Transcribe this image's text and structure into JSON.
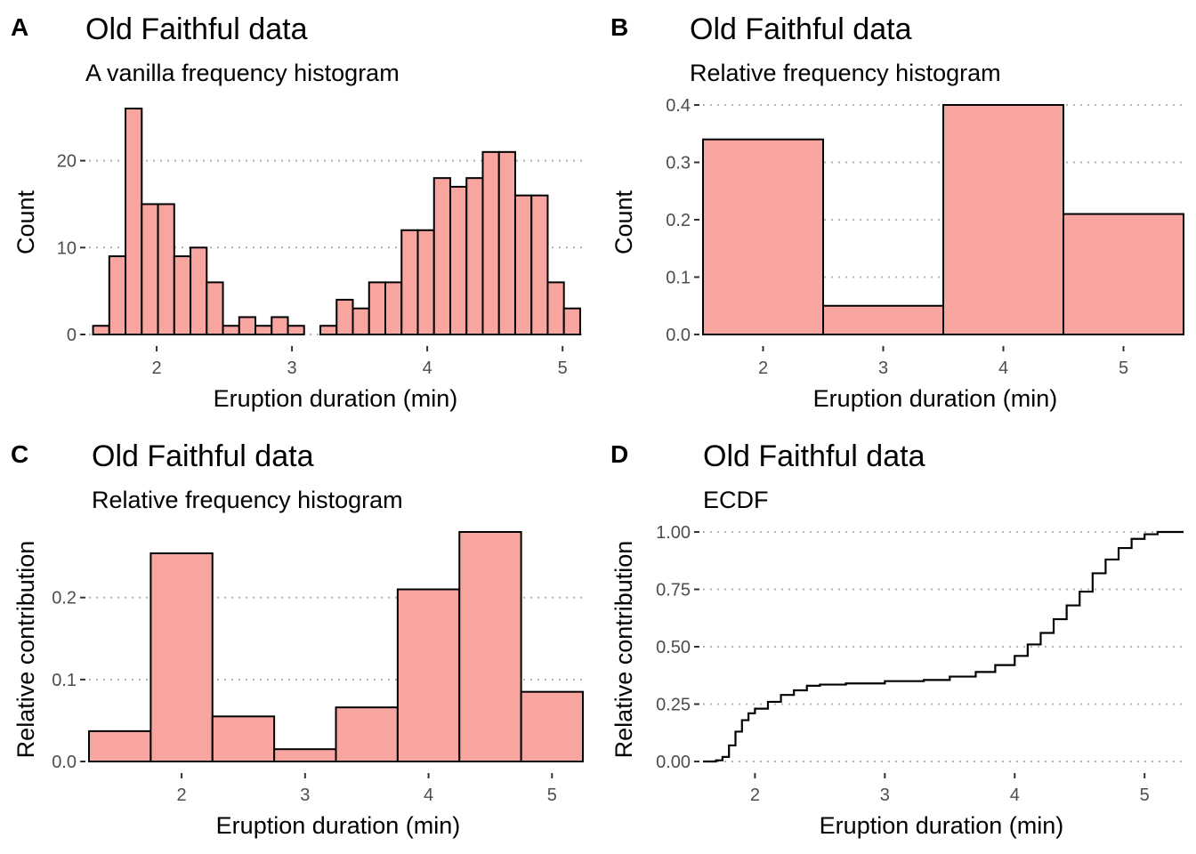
{
  "chart_data": [
    {
      "tag": "A",
      "type": "bar",
      "title": "Old Faithful data",
      "subtitle": "A vanilla frequency histogram",
      "xlabel": "Eruption duration (min)",
      "ylabel": "Count",
      "xlim": [
        1.5,
        5.15
      ],
      "ylim": [
        0,
        26
      ],
      "xticks": [
        2,
        3,
        4,
        5
      ],
      "yticks": [
        0,
        10,
        20
      ],
      "grid": "horizontal dotted",
      "bin_edges": [
        1.53,
        1.65,
        1.77,
        1.89,
        2.01,
        2.13,
        2.25,
        2.37,
        2.49,
        2.61,
        2.73,
        2.85,
        2.97,
        3.09,
        3.21,
        3.33,
        3.45,
        3.57,
        3.69,
        3.81,
        3.93,
        4.05,
        4.17,
        4.29,
        4.41,
        4.53,
        4.65,
        4.77,
        4.89,
        5.01,
        5.13
      ],
      "values": [
        1,
        9,
        26,
        15,
        15,
        9,
        10,
        6,
        1,
        2,
        1,
        2,
        1,
        0,
        1,
        4,
        3,
        6,
        6,
        12,
        12,
        18,
        17,
        18,
        21,
        21,
        16,
        16,
        6,
        3
      ]
    },
    {
      "tag": "B",
      "type": "bar",
      "title": "Old Faithful data",
      "subtitle": "Relative frequency histogram",
      "xlabel": "Eruption duration (min)",
      "ylabel": "Count",
      "xlim": [
        1.5,
        5.5
      ],
      "ylim": [
        0,
        0.4
      ],
      "xticks": [
        2,
        3,
        4,
        5
      ],
      "yticks": [
        0.0,
        0.1,
        0.2,
        0.3,
        0.4
      ],
      "ytick_format": 1,
      "grid": "horizontal dotted",
      "bin_edges": [
        1.5,
        2.5,
        3.5,
        4.5,
        5.5
      ],
      "values": [
        0.34,
        0.05,
        0.4,
        0.21
      ]
    },
    {
      "tag": "C",
      "type": "bar",
      "title": "Old Faithful data",
      "subtitle": "Relative frequency histogram",
      "xlabel": "Eruption duration (min)",
      "ylabel": "Relative contribution",
      "xlim": [
        1.25,
        5.25
      ],
      "ylim": [
        0,
        0.28
      ],
      "xticks": [
        2,
        3,
        4,
        5
      ],
      "yticks": [
        0.0,
        0.1,
        0.2
      ],
      "ytick_format": 1,
      "grid": "horizontal dotted",
      "bin_edges": [
        1.25,
        1.75,
        2.25,
        2.75,
        3.25,
        3.75,
        4.25,
        4.75,
        5.25
      ],
      "values": [
        0.037,
        0.254,
        0.055,
        0.015,
        0.066,
        0.21,
        0.28,
        0.085
      ]
    },
    {
      "tag": "D",
      "type": "line",
      "title": "Old Faithful data",
      "subtitle": "ECDF",
      "xlabel": "Eruption duration (min)",
      "ylabel": "Relative contribution",
      "xlim": [
        1.6,
        5.3
      ],
      "ylim": [
        0,
        1
      ],
      "xticks": [
        2,
        3,
        4,
        5
      ],
      "yticks": [
        0.0,
        0.25,
        0.5,
        0.75,
        1.0
      ],
      "ytick_format": 2,
      "grid": "horizontal dotted",
      "x": [
        1.6,
        1.7,
        1.75,
        1.8,
        1.85,
        1.9,
        1.95,
        2.0,
        2.1,
        2.2,
        2.3,
        2.4,
        2.5,
        2.7,
        3.0,
        3.3,
        3.5,
        3.7,
        3.85,
        4.0,
        4.1,
        4.2,
        4.3,
        4.4,
        4.5,
        4.6,
        4.7,
        4.8,
        4.9,
        5.0,
        5.1,
        5.3
      ],
      "y": [
        0.0,
        0.005,
        0.02,
        0.07,
        0.13,
        0.18,
        0.21,
        0.23,
        0.26,
        0.29,
        0.31,
        0.33,
        0.335,
        0.34,
        0.35,
        0.355,
        0.37,
        0.39,
        0.42,
        0.46,
        0.51,
        0.56,
        0.62,
        0.68,
        0.74,
        0.82,
        0.88,
        0.93,
        0.97,
        0.99,
        1.0,
        1.0
      ]
    }
  ]
}
